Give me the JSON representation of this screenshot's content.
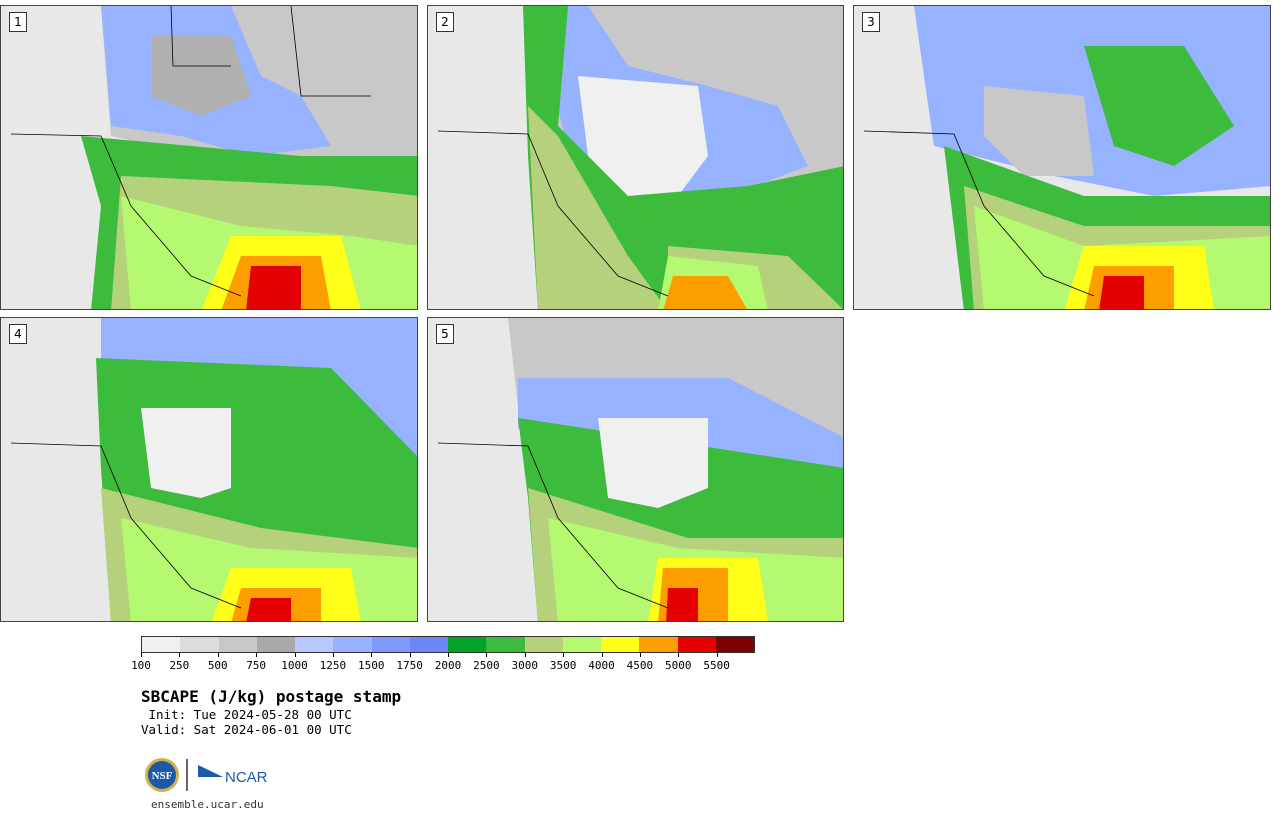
{
  "panels": [
    {
      "label": "1",
      "blobs": "a"
    },
    {
      "label": "2",
      "blobs": "b"
    },
    {
      "label": "3",
      "blobs": "c"
    },
    {
      "label": "4",
      "blobs": "d"
    },
    {
      "label": "5",
      "blobs": "e"
    }
  ],
  "colorbar": {
    "colors": [
      "#f0f0f0",
      "#dcdcdc",
      "#c8c8c8",
      "#a9a9a9",
      "#b9c8ff",
      "#97b2ff",
      "#7f99ff",
      "#6f86f7",
      "#05a028",
      "#3cbb3c",
      "#b5d17b",
      "#b4f96f",
      "#ffff1a",
      "#fd9e00",
      "#e40000",
      "#7e0000"
    ],
    "tick_labels": [
      "100",
      "250",
      "500",
      "750",
      "1000",
      "1250",
      "1500",
      "1750",
      "2000",
      "2500",
      "3000",
      "3500",
      "4000",
      "4500",
      "5000",
      "5500"
    ]
  },
  "title": "SBCAPE (J/kg) postage stamp",
  "init": " Init: Tue 2024-05-28 00 UTC",
  "valid": "Valid: Sat 2024-06-01 00 UTC",
  "logos": {
    "nsf": "NSF",
    "ncar": "NCAR"
  },
  "url": "ensemble.ucar.edu"
}
